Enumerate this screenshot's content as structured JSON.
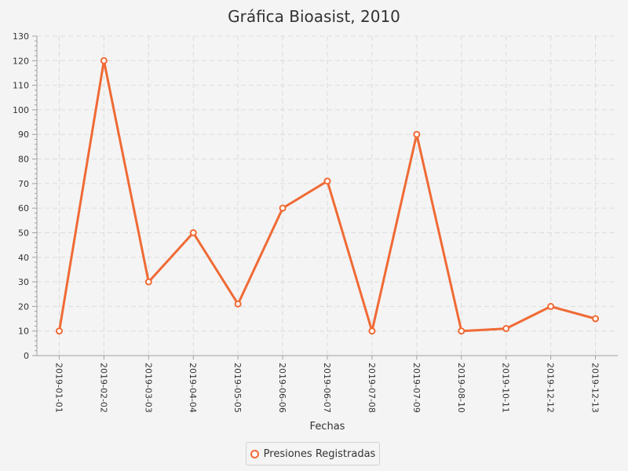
{
  "chart_data": {
    "type": "line",
    "title": "Gráfica Bioasist, 2010",
    "xlabel": "Fechas",
    "ylabel": "",
    "categories": [
      "2019-01-01",
      "2019-02-02",
      "2019-03-03",
      "2019-04-04",
      "2019-05-05",
      "2019-06-06",
      "2019-06-07",
      "2019-07-08",
      "2019-07-09",
      "2019-08-10",
      "2019-10-11",
      "2019-12-12",
      "2019-12-13"
    ],
    "series": [
      {
        "name": "Presiones Registradas",
        "values": [
          10,
          120,
          30,
          50,
          21,
          60,
          71,
          10,
          90,
          10,
          11,
          20,
          15
        ]
      }
    ],
    "ylim": [
      0,
      130
    ],
    "yticks": [
      0,
      10,
      20,
      30,
      40,
      50,
      60,
      70,
      80,
      90,
      100,
      110,
      120,
      130
    ],
    "grid": true,
    "legend_position": "bottom",
    "colors": {
      "series": "#f06a35"
    }
  }
}
